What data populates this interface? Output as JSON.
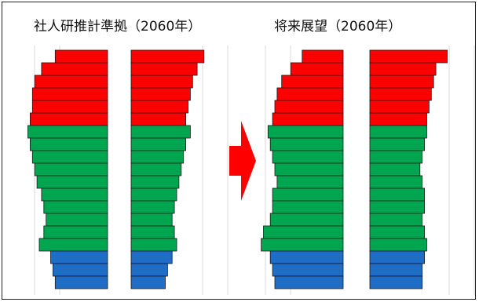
{
  "titles": {
    "left": "社人研推計準拠（2060年）",
    "right": "将来展望（2060年）"
  },
  "colors": {
    "elderly": "#ff0000",
    "working": "#00a550",
    "youth": "#1e6ec8",
    "arrow": "#ff0000",
    "gridline": "#d8d8d8"
  },
  "icons": {
    "transition": "right-arrow-icon"
  },
  "chart_data": [
    {
      "type": "bar",
      "orientation": "horizontal-pyramid",
      "title": "社人研推計準拠（2060年）",
      "xlabel": "",
      "ylabel": "",
      "groups": [
        {
          "name": "",
          "color": "#ff0000",
          "rows": 6
        },
        {
          "name": "",
          "color": "#00a550",
          "rows": 10
        },
        {
          "name": "",
          "color": "#1e6ec8",
          "rows": 3
        }
      ],
      "series": [
        {
          "side": "left",
          "values": [
            46,
            58,
            64,
            66,
            66,
            68,
            70,
            68,
            66,
            64,
            62,
            58,
            56,
            54,
            56,
            60,
            50,
            48,
            46
          ]
        },
        {
          "side": "right",
          "values": [
            64,
            58,
            54,
            52,
            50,
            48,
            52,
            48,
            46,
            44,
            42,
            40,
            38,
            36,
            38,
            40,
            36,
            32,
            30
          ]
        }
      ]
    },
    {
      "type": "bar",
      "orientation": "horizontal-pyramid",
      "title": "将来展望（2060年）",
      "xlabel": "",
      "ylabel": "",
      "groups": [
        {
          "name": "",
          "color": "#ff0000",
          "rows": 6
        },
        {
          "name": "",
          "color": "#00a550",
          "rows": 10
        },
        {
          "name": "",
          "color": "#1e6ec8",
          "rows": 3
        }
      ],
      "series": [
        {
          "side": "left",
          "values": [
            36,
            46,
            54,
            58,
            60,
            62,
            66,
            64,
            62,
            60,
            58,
            62,
            62,
            64,
            70,
            72,
            64,
            62,
            60
          ]
        },
        {
          "side": "right",
          "values": [
            68,
            58,
            56,
            54,
            52,
            50,
            50,
            48,
            46,
            44,
            46,
            48,
            48,
            46,
            48,
            50,
            48,
            46,
            46
          ]
        }
      ]
    }
  ]
}
